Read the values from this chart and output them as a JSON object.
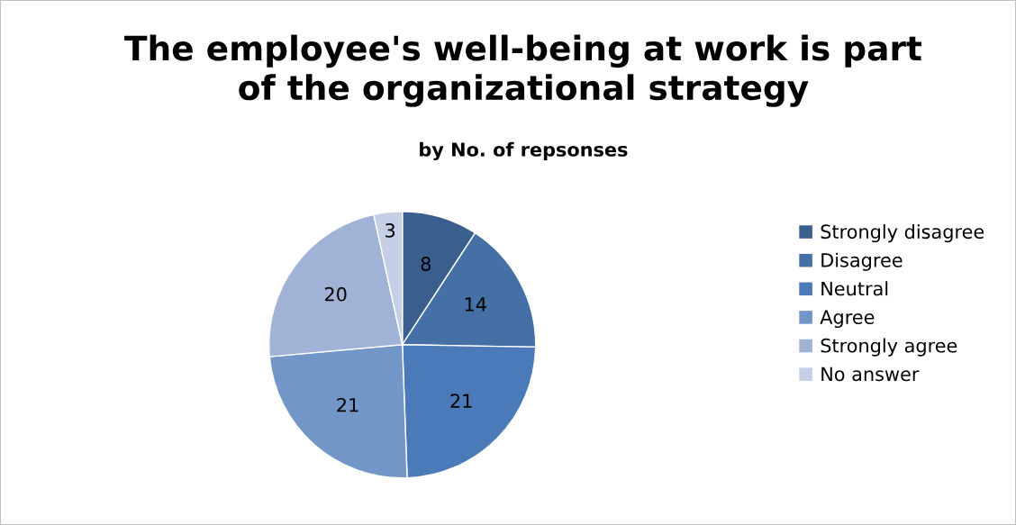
{
  "chart_data": {
    "type": "pie",
    "title": "The employee's well-being at work is part\nof the organizational strategy",
    "subtitle": "by No. of repsonses",
    "categories": [
      "Strongly disagree",
      "Disagree",
      "Neutral",
      "Agree",
      "Strongly agree",
      "No answer"
    ],
    "values": [
      8,
      14,
      21,
      21,
      20,
      3
    ],
    "colors": [
      "#3a5f8f",
      "#4470a5",
      "#4a7ab8",
      "#7396c8",
      "#a0b3d6",
      "#c5d0e6"
    ],
    "data_labels": true,
    "legend": "right"
  }
}
